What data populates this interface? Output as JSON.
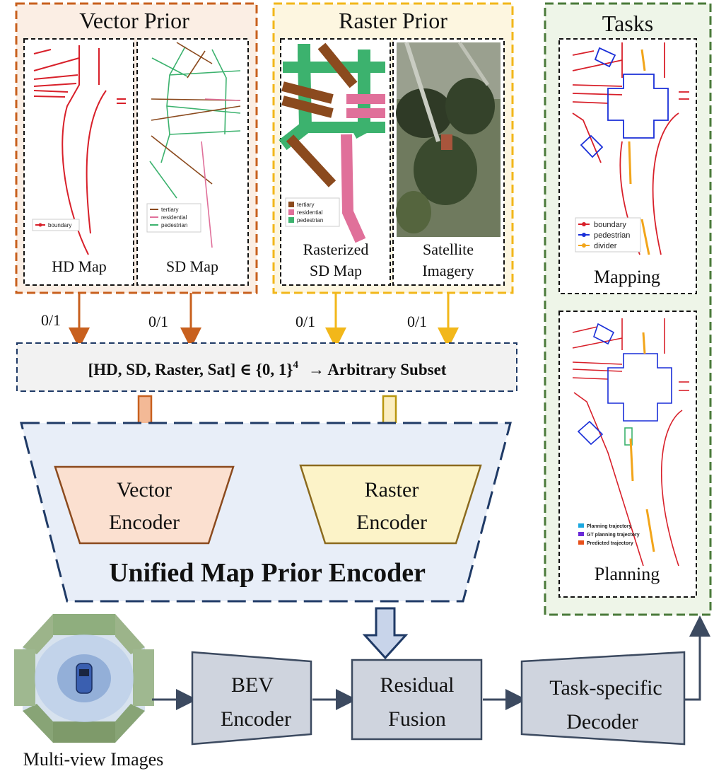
{
  "vector_prior": {
    "title": "Vector Prior",
    "hd_map": "HD Map",
    "sd_map": "SD Map",
    "hd_legend": "boundary",
    "sd_legend": [
      "tertiary",
      "residential",
      "pedestrian"
    ]
  },
  "raster_prior": {
    "title": "Raster Prior",
    "rasterized_l1": "Rasterized",
    "rasterized_l2": "SD Map",
    "satellite_l1": "Satellite",
    "satellite_l2": "Imagery",
    "raster_legend": [
      "tertiary",
      "residential",
      "pedestrian"
    ]
  },
  "tasks": {
    "title": "Tasks",
    "mapping": "Mapping",
    "planning": "Planning",
    "mapping_legend": [
      "boundary",
      "pedestrian",
      "divider"
    ],
    "planning_legend": [
      "Planning trajectory",
      "GT planning trajectory",
      "Predicted trajectory"
    ]
  },
  "toggles": [
    "0/1",
    "0/1",
    "0/1",
    "0/1"
  ],
  "subset": {
    "left": "[HD, SD, Raster, Sat] ∈ {",
    "zero": "0",
    "comma": ", ",
    "one": "1",
    "right": "}",
    "exp": "4",
    "arrow": "→ Arbitrary Subset"
  },
  "encoder": {
    "vector_l1": "Vector",
    "vector_l2": "Encoder",
    "raster_l1": "Raster",
    "raster_l2": "Encoder",
    "unified": "Unified Map Prior Encoder"
  },
  "pipeline": {
    "multiview": "Multi-view Images",
    "bev_l1": "BEV",
    "bev_l2": "Encoder",
    "fusion_l1": "Residual",
    "fusion_l2": "Fusion",
    "decoder_l1": "Task-specific",
    "decoder_l2": "Decoder"
  },
  "colors": {
    "vector_frame": "#c8601e",
    "vector_fill": "#fbeee4",
    "raster_frame": "#f2b71a",
    "raster_fill": "#fdf6e0",
    "tasks_frame": "#4a7a3a",
    "tasks_fill": "#eef5e8",
    "unified_fill": "#e8eef8",
    "unified_frame": "#1f3a66",
    "tertiary": "#8b4a1e",
    "residential": "#e0709a",
    "pedestrian": "#3cb26e",
    "boundary": "#d8202a",
    "ped_blue": "#1a2fd8",
    "divider": "#f2a51a",
    "block_fill": "#cfd4de",
    "block_frame": "#3c4a60"
  }
}
